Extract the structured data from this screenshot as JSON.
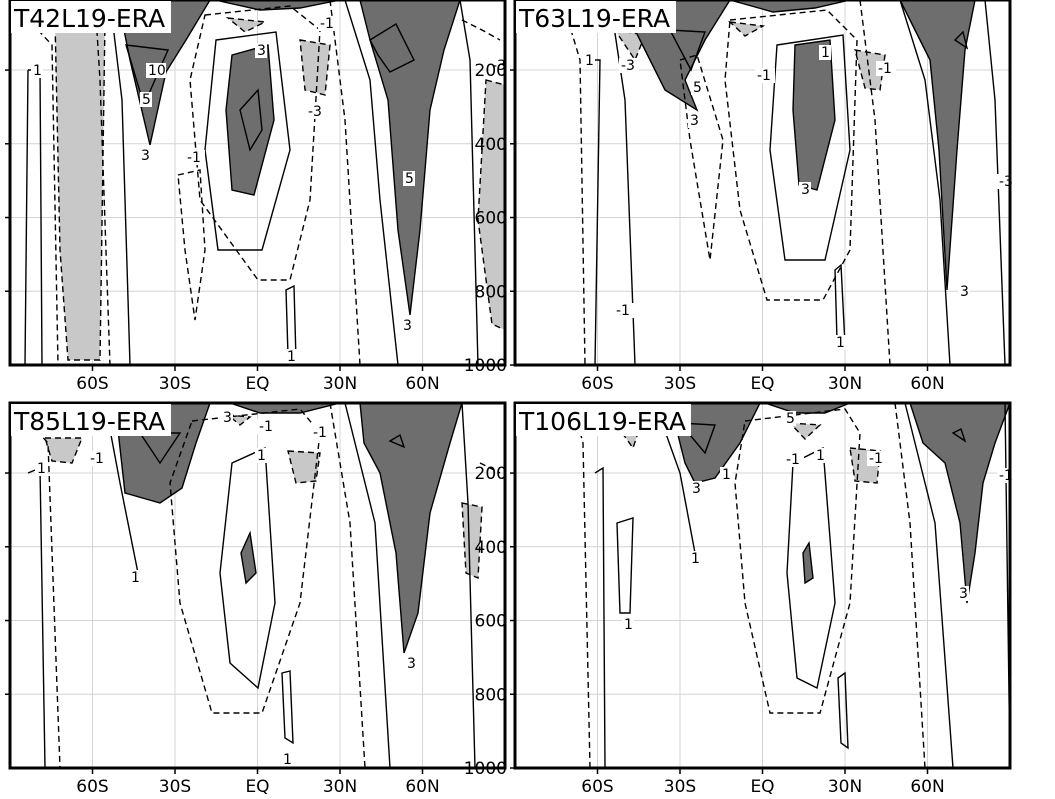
{
  "chart_data": [
    {
      "type": "contour",
      "title": "T42L19-ERA",
      "x_tick_labels": [
        "60S",
        "30S",
        "EQ",
        "30N",
        "60N"
      ],
      "x_ticks": [
        -60,
        -30,
        0,
        30,
        60
      ],
      "y_tick_labels": [],
      "xlim": [
        -90,
        90
      ],
      "ylim": [
        1000,
        10
      ],
      "contour_labels": [
        "1",
        "10",
        "5",
        "3",
        "-1",
        "3",
        "-3",
        "5",
        "3",
        "1",
        "-1",
        "-3"
      ]
    },
    {
      "type": "contour",
      "title": "T63L19-ERA",
      "x_tick_labels": [
        "60S",
        "30S",
        "EQ",
        "30N",
        "60N"
      ],
      "x_ticks": [
        -60,
        -30,
        0,
        30,
        60
      ],
      "y_tick_labels": [
        "200",
        "400",
        "600",
        "800",
        "1000"
      ],
      "y_ticks": [
        200,
        400,
        600,
        800,
        1000
      ],
      "xlim": [
        -90,
        90
      ],
      "ylim": [
        1000,
        10
      ],
      "contour_labels": [
        "1",
        "-3",
        "5",
        "3",
        "-1",
        "1",
        "3",
        "3",
        "-1",
        "-3",
        "1",
        "-1"
      ]
    },
    {
      "type": "contour",
      "title": "T85L19-ERA",
      "x_tick_labels": [
        "60S",
        "30S",
        "EQ",
        "30N",
        "60N"
      ],
      "x_ticks": [
        -60,
        -30,
        0,
        30,
        60
      ],
      "y_tick_labels": [],
      "xlim": [
        -90,
        90
      ],
      "ylim": [
        1000,
        10
      ],
      "contour_labels": [
        "3",
        "-1",
        "-1",
        "1",
        "-1",
        "1",
        "1",
        "3",
        "1"
      ]
    },
    {
      "type": "contour",
      "title": "T106L19-ERA",
      "x_tick_labels": [
        "60S",
        "30S",
        "EQ",
        "30N",
        "60N"
      ],
      "x_ticks": [
        -60,
        -30,
        0,
        30,
        60
      ],
      "y_tick_labels": [
        "200",
        "400",
        "600",
        "800",
        "1000"
      ],
      "y_ticks": [
        200,
        400,
        600,
        800,
        1000
      ],
      "xlim": [
        -90,
        90
      ],
      "ylim": [
        1000,
        10
      ],
      "contour_labels": [
        "5",
        "-1",
        "-1",
        "1",
        "1",
        "3",
        "1",
        "1",
        "3",
        "-1"
      ]
    }
  ]
}
